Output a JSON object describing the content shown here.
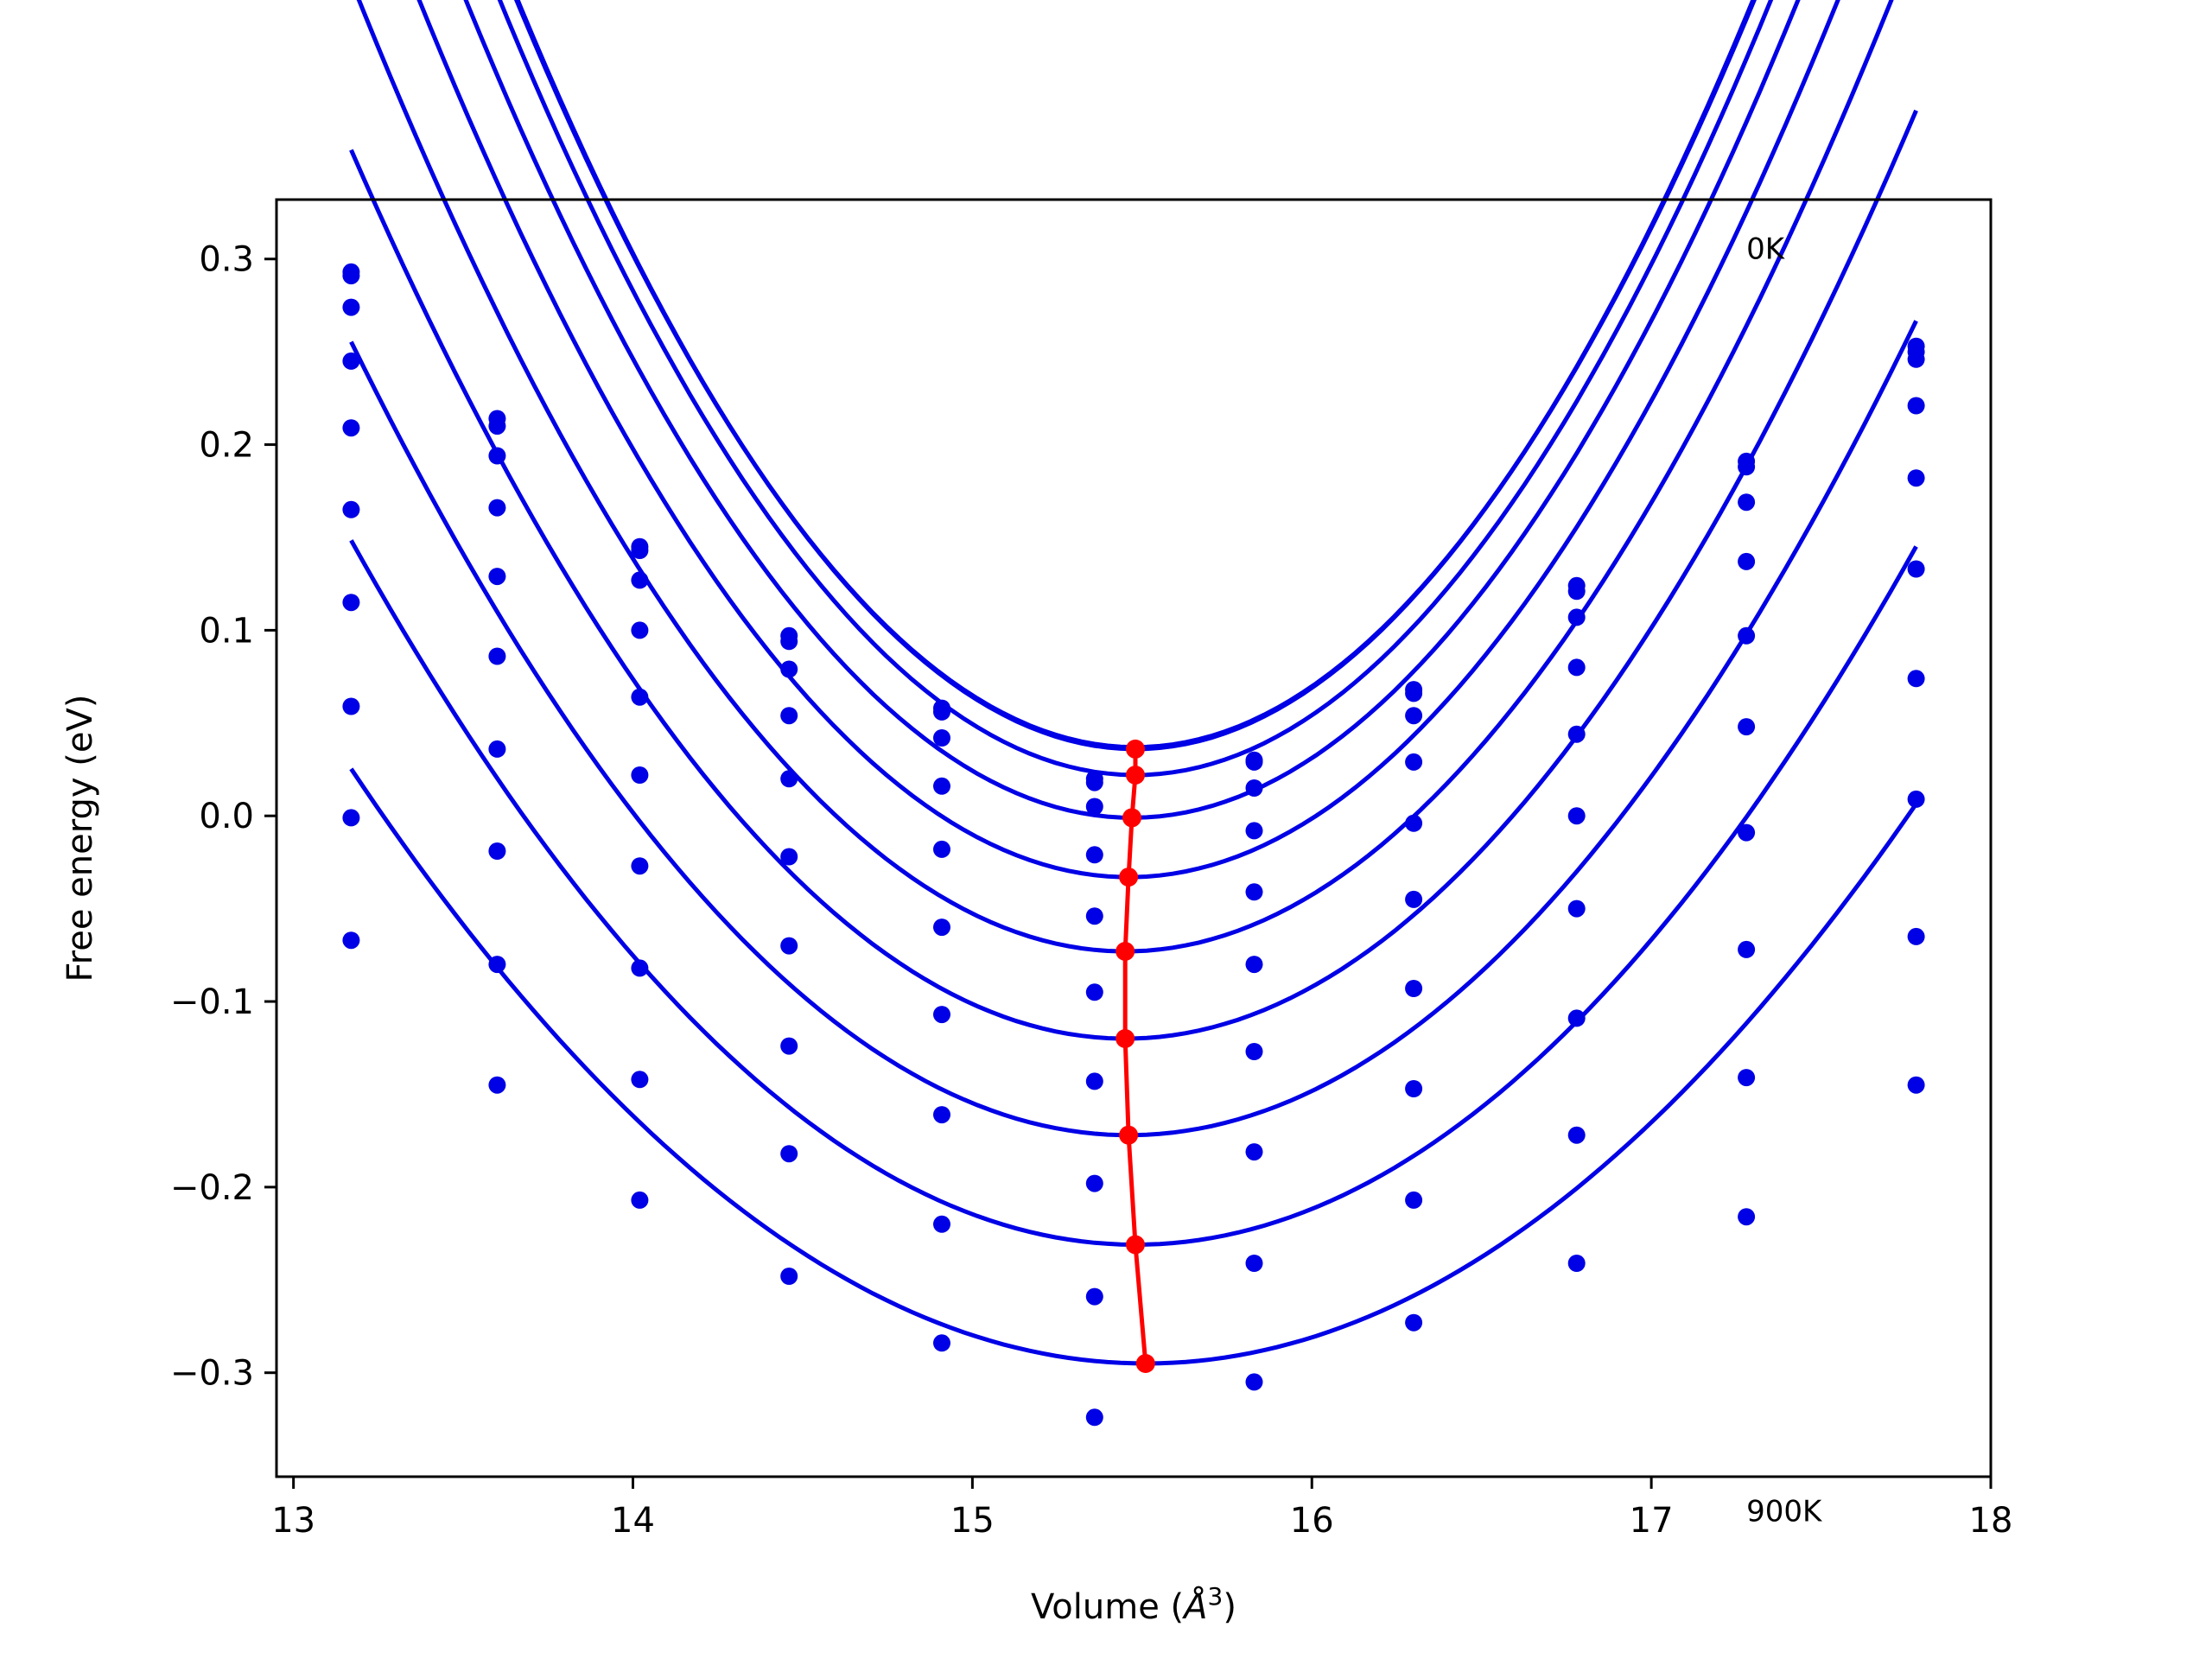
{
  "chart_data": {
    "type": "line",
    "xlabel": "Volume (",
    "xlabel_unit_base": "Å",
    "xlabel_unit_exp": "3",
    "xlabel_suffix": ")",
    "ylabel": "Free energy (eV)",
    "xlim": [
      12.95,
      18.0
    ],
    "ylim": [
      -0.356,
      0.332
    ],
    "xticks": [
      13,
      14,
      15,
      16,
      17,
      18
    ],
    "xtick_labels": [
      "13",
      "14",
      "15",
      "16",
      "17",
      "18"
    ],
    "yticks": [
      -0.3,
      -0.2,
      -0.1,
      0.0,
      0.1,
      0.2,
      0.3
    ],
    "ytick_labels": [
      "−0.3",
      "−0.2",
      "−0.1",
      "0.0",
      "0.1",
      "0.2",
      "0.3"
    ],
    "annotations": [
      {
        "text": "0K",
        "x": 17.28,
        "y": 0.3
      },
      {
        "text": "900K",
        "x": 17.28,
        "y": -0.38
      }
    ],
    "series_color": "#0000e6",
    "min_line_color": "#ff0000",
    "volumes": [
      13.17,
      13.6,
      14.02,
      14.46,
      14.91,
      15.36,
      15.83,
      16.3,
      16.78,
      17.28,
      17.78
    ],
    "curve_x_range": [
      13.17,
      17.78
    ],
    "series": [
      {
        "points": [
          0.291,
          0.21,
          0.143,
          0.097,
          0.058,
          0.018,
          0.029,
          0.068,
          0.124,
          0.191,
          0.253
        ],
        "curve": {
          "a": 0.1219,
          "v0": 15.48,
          "e0": 0.036
        }
      },
      {
        "points": [
          0.293,
          0.214,
          0.145,
          0.094,
          0.056,
          0.02,
          0.03,
          0.066,
          0.121,
          0.188,
          0.25
        ],
        "curve": {
          "a": 0.1211,
          "v0": 15.48,
          "e0": 0.037
        }
      },
      {
        "points": [
          0.274,
          0.194,
          0.127,
          0.079,
          0.042,
          0.005,
          0.015,
          0.054,
          0.107,
          0.169,
          0.246
        ],
        "curve": {
          "a": 0.1191,
          "v0": 15.48,
          "e0": 0.022
        }
      },
      {
        "points": [
          0.245,
          0.166,
          0.1,
          0.054,
          0.016,
          -0.021,
          -0.008,
          0.029,
          0.08,
          0.137,
          0.221
        ],
        "curve": {
          "a": 0.1144,
          "v0": 15.47,
          "e0": -0.001
        }
      },
      {
        "points": [
          0.209,
          0.129,
          0.064,
          0.02,
          -0.018,
          -0.054,
          -0.041,
          -0.004,
          0.044,
          0.097,
          0.182
        ],
        "curve": {
          "a": 0.1082,
          "v0": 15.46,
          "e0": -0.033
        }
      },
      {
        "points": [
          0.165,
          0.086,
          0.022,
          -0.022,
          -0.06,
          -0.095,
          -0.08,
          -0.045,
          0.0,
          0.048,
          0.133
        ],
        "curve": {
          "a": 0.1006,
          "v0": 15.45,
          "e0": -0.073
        }
      },
      {
        "points": [
          0.115,
          0.036,
          -0.027,
          -0.07,
          -0.107,
          -0.143,
          -0.127,
          -0.093,
          -0.05,
          -0.009,
          0.074
        ],
        "curve": {
          "a": 0.0921,
          "v0": 15.45,
          "e0": -0.12
        }
      },
      {
        "points": [
          0.059,
          -0.019,
          -0.082,
          -0.124,
          -0.161,
          -0.198,
          -0.181,
          -0.147,
          -0.109,
          -0.072,
          0.009
        ],
        "curve": {
          "a": 0.0815,
          "v0": 15.46,
          "e0": -0.172
        }
      },
      {
        "points": [
          -0.001,
          -0.08,
          -0.142,
          -0.182,
          -0.22,
          -0.259,
          -0.241,
          -0.207,
          -0.172,
          -0.141,
          -0.065
        ],
        "curve": {
          "a": 0.0711,
          "v0": 15.48,
          "e0": -0.231
        }
      },
      {
        "points": [
          -0.067,
          -0.145,
          -0.207,
          -0.248,
          -0.284,
          -0.324,
          -0.305,
          -0.273,
          -0.241,
          -0.216,
          -0.145
        ],
        "curve": {
          "a": 0.0585,
          "v0": 15.51,
          "e0": -0.295
        }
      }
    ],
    "minimum_line": {
      "x": [
        15.48,
        15.48,
        15.47,
        15.46,
        15.45,
        15.45,
        15.46,
        15.48,
        15.51
      ],
      "y": [
        0.036,
        0.022,
        -0.001,
        -0.033,
        -0.073,
        -0.12,
        -0.172,
        -0.231,
        -0.295
      ]
    }
  }
}
